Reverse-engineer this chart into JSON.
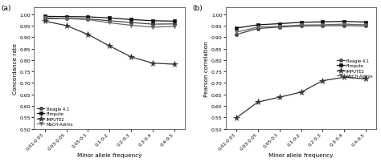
{
  "x_labels": [
    "0.01-0.03",
    "0.03-0.05",
    "0.05-0.1",
    "0.1-0.2",
    "0.2-0.3",
    "0.3-0.4",
    "0.4-0.5"
  ],
  "x_vals": [
    0,
    1,
    2,
    3,
    4,
    5,
    6
  ],
  "panel_a": {
    "title": "(a)",
    "ylabel": "Concordance rate",
    "xlabel": "Minor allele frequency",
    "ylim": [
      0.5,
      1.03
    ],
    "yticks": [
      0.5,
      0.55,
      0.6,
      0.65,
      0.7,
      0.75,
      0.8,
      0.85,
      0.9,
      0.95,
      1.0
    ],
    "legend_loc": "lower left",
    "series": [
      {
        "name": "Beagle 4.1",
        "values": [
          0.98,
          0.982,
          0.98,
          0.972,
          0.964,
          0.957,
          0.958
        ],
        "marker": "o",
        "color": "#444444",
        "linewidth": 0.9,
        "markersize": 3.0
      },
      {
        "name": "FImpute",
        "values": [
          0.991,
          0.99,
          0.989,
          0.984,
          0.977,
          0.972,
          0.97
        ],
        "marker": "s",
        "color": "#111111",
        "linewidth": 0.9,
        "markersize": 3.0
      },
      {
        "name": "IMPUTE2",
        "values": [
          0.97,
          0.951,
          0.912,
          0.862,
          0.814,
          0.787,
          0.782
        ],
        "marker": "*",
        "color": "#333333",
        "linewidth": 0.9,
        "markersize": 5.5
      },
      {
        "name": "MaCH-Admix",
        "values": [
          0.985,
          0.981,
          0.977,
          0.963,
          0.952,
          0.944,
          0.947
        ],
        "marker": "v",
        "color": "#666666",
        "linewidth": 0.9,
        "markersize": 3.0
      }
    ]
  },
  "panel_b": {
    "title": "(b)",
    "ylabel": "Pearson correlation",
    "xlabel": "Minor allele frequency",
    "ylim": [
      0.5,
      1.03
    ],
    "yticks": [
      0.5,
      0.55,
      0.6,
      0.65,
      0.7,
      0.75,
      0.8,
      0.85,
      0.9,
      0.95,
      1.0
    ],
    "legend_loc": "center right",
    "series": [
      {
        "name": "Beagle 4.1",
        "values": [
          0.912,
          0.938,
          0.944,
          0.949,
          0.95,
          0.951,
          0.949
        ],
        "marker": "o",
        "color": "#444444",
        "linewidth": 0.9,
        "markersize": 3.0
      },
      {
        "name": "FImpute",
        "values": [
          0.94,
          0.954,
          0.959,
          0.965,
          0.967,
          0.969,
          0.966
        ],
        "marker": "s",
        "color": "#111111",
        "linewidth": 0.9,
        "markersize": 3.0
      },
      {
        "name": "IMPUTE2",
        "values": [
          0.548,
          0.617,
          0.638,
          0.66,
          0.71,
          0.725,
          0.718
        ],
        "marker": "*",
        "color": "#333333",
        "linewidth": 0.9,
        "markersize": 5.5
      },
      {
        "name": "MaCH-Admix",
        "values": [
          0.922,
          0.944,
          0.948,
          0.953,
          0.954,
          0.957,
          0.954
        ],
        "marker": "v",
        "color": "#666666",
        "linewidth": 0.9,
        "markersize": 3.0
      }
    ]
  },
  "background_color": "#ffffff"
}
